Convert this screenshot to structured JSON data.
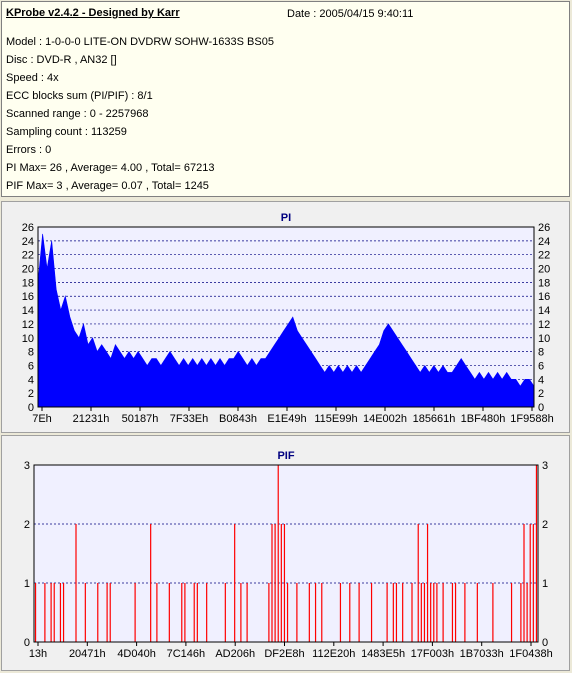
{
  "header": {
    "title": "KProbe v2.4.2 - Designed by Karr",
    "date": "Date : 2005/04/15 9:40:11"
  },
  "info_lines": [
    "Model : 1-0-0-0 LITE-ON DVDRW SOHW-1633S BS05",
    "Disc : DVD-R , AN32 []",
    "Speed : 4x",
    "ECC blocks sum (PI/PIF) : 8/1",
    "Scanned range : 0 - 2257968",
    "Sampling count : 113259",
    "Errors : 0",
    "PI Max= 26 , Average= 4.00 , Total= 67213",
    "PIF Max= 3 , Average= 0.07 , Total= 1245"
  ],
  "colors": {
    "pi": "#0000ff",
    "pif": "#ff0000",
    "title": "#000080",
    "plot_bg": "#f0f0ff",
    "grid": "#000080"
  },
  "chart_data": [
    {
      "type": "area",
      "title": "PI",
      "ylim": [
        0,
        26
      ],
      "y_ticks": [
        0,
        2,
        4,
        6,
        8,
        10,
        12,
        14,
        16,
        18,
        20,
        22,
        24,
        26
      ],
      "x_tick_labels": [
        "7Eh",
        "21231h",
        "50187h",
        "7F33Eh",
        "B0843h",
        "E1E49h",
        "115E99h",
        "14E002h",
        "185661h",
        "1BF480h",
        "1F9588h"
      ],
      "grid": "dashed horizontal",
      "series": [
        {
          "values": [
            18,
            25,
            20,
            24,
            17,
            14,
            16,
            13,
            11,
            10,
            12,
            9,
            10,
            8,
            9,
            8,
            7,
            9,
            8,
            7,
            8,
            7,
            8,
            7,
            6,
            7,
            7,
            6,
            7,
            8,
            7,
            6,
            7,
            6,
            7,
            6,
            7,
            6,
            7,
            6,
            7,
            6,
            7,
            7,
            8,
            7,
            6,
            7,
            6,
            7,
            7,
            8,
            9,
            10,
            11,
            12,
            13,
            11,
            10,
            9,
            8,
            7,
            6,
            5,
            6,
            5,
            6,
            5,
            6,
            5,
            6,
            5,
            6,
            7,
            8,
            9,
            11,
            12,
            11,
            10,
            9,
            8,
            7,
            6,
            5,
            6,
            5,
            6,
            5,
            6,
            5,
            5,
            6,
            7,
            6,
            5,
            4,
            5,
            4,
            5,
            4,
            5,
            4,
            5,
            4,
            4,
            3,
            4,
            4,
            3
          ]
        }
      ]
    },
    {
      "type": "bar",
      "title": "PIF",
      "ylim": [
        0,
        3
      ],
      "y_ticks": [
        0,
        1,
        2,
        3
      ],
      "x_tick_labels": [
        "13h",
        "20471h",
        "4D040h",
        "7C146h",
        "AD206h",
        "DF2E8h",
        "112E20h",
        "1483E5h",
        "17F003h",
        "1B7033h",
        "1F0438h"
      ],
      "grid": "dashed horizontal",
      "series": [
        {
          "values": [
            1,
            0,
            0,
            1,
            0,
            1,
            1,
            0,
            1,
            1,
            0,
            0,
            0,
            2,
            0,
            0,
            1,
            0,
            0,
            0,
            1,
            0,
            0,
            1,
            1,
            0,
            0,
            0,
            0,
            0,
            0,
            0,
            1,
            0,
            0,
            0,
            0,
            2,
            0,
            1,
            0,
            0,
            0,
            1,
            0,
            0,
            0,
            1,
            1,
            0,
            0,
            1,
            1,
            0,
            0,
            1,
            0,
            0,
            0,
            0,
            0,
            1,
            0,
            0,
            2,
            0,
            1,
            0,
            1,
            0,
            0,
            0,
            0,
            0,
            0,
            1,
            2,
            2,
            3,
            2,
            2,
            1,
            0,
            0,
            1,
            0,
            0,
            0,
            1,
            0,
            1,
            0,
            1,
            0,
            0,
            0,
            0,
            0,
            1,
            0,
            0,
            1,
            0,
            0,
            1,
            0,
            0,
            0,
            1,
            0,
            0,
            0,
            0,
            1,
            0,
            1,
            1,
            0,
            1,
            0,
            0,
            1,
            0,
            2,
            1,
            1,
            2,
            1,
            1,
            1,
            0,
            1,
            0,
            0,
            1,
            1,
            0,
            0,
            1,
            0,
            0,
            0,
            1,
            0,
            0,
            0,
            0,
            1,
            0,
            0,
            0,
            0,
            0,
            1,
            0,
            0,
            1,
            2,
            1,
            2,
            2,
            3
          ]
        }
      ]
    }
  ]
}
